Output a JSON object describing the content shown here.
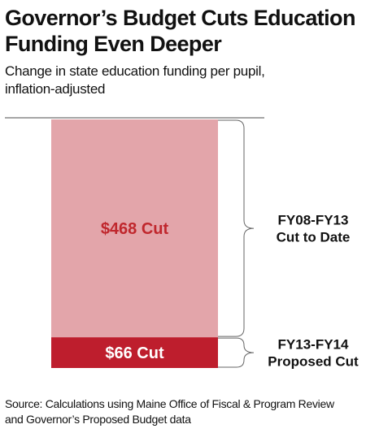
{
  "title_line1": "Governor’s Budget  Cuts Education",
  "title_line2": "Funding Even Deeper",
  "subtitle_line1": "Change in state education funding per pupil,",
  "subtitle_line2": "inflation-adjusted",
  "source_line1": "Source: Calculations using Maine Office of Fiscal & Program Review",
  "source_line2": "and Governor’s Proposed Budget data",
  "chart_data": {
    "type": "bar",
    "stacked": true,
    "title": "Governor’s Budget  Cuts Education Funding Even Deeper",
    "subtitle": "Change in state education funding per pupil, inflation-adjusted",
    "series": [
      {
        "name": "FY08-FY13 Cut to Date",
        "value": 468,
        "label": "$468 Cut",
        "bracket_label": [
          "FY08-FY13",
          "Cut to Date"
        ],
        "color": "#e3a5aa",
        "label_color": "#c0272d"
      },
      {
        "name": "FY13-FY14 Proposed Cut",
        "value": 66,
        "label": "$66 Cut",
        "bracket_label": [
          "FY13-FY14",
          "Proposed Cut"
        ],
        "color": "#be1e2d",
        "label_color": "#ffffff"
      }
    ],
    "grid": false,
    "legend": "none"
  }
}
